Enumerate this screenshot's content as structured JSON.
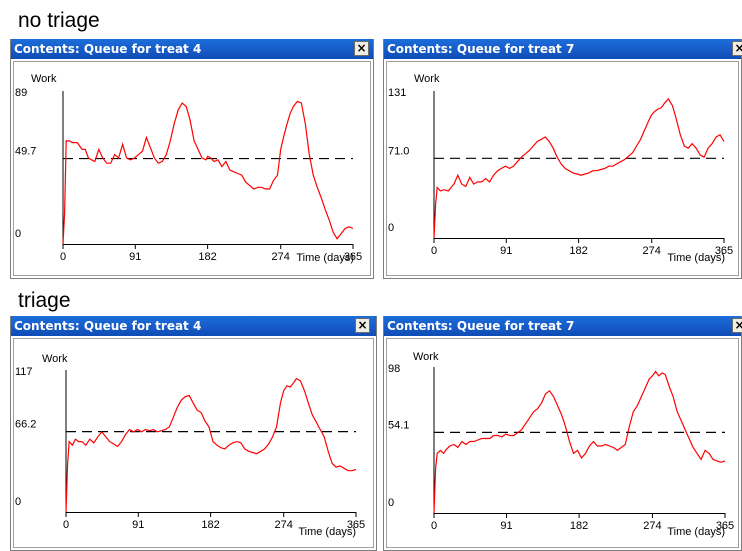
{
  "sections": [
    {
      "label": "no triage"
    },
    {
      "label": "triage"
    }
  ],
  "windows": [
    {
      "title": "Contents: Queue for treat 4",
      "close": "×"
    },
    {
      "title": "Contents: Queue for treat 7",
      "close": "×"
    },
    {
      "title": "Contents: Queue for treat 4",
      "close": "×"
    },
    {
      "title": "Contents: Queue for treat 7",
      "close": "×"
    }
  ],
  "chart_data": [
    {
      "type": "line",
      "title": "Contents: Queue for treat 4",
      "ylabel": "Work",
      "xlabel": "Time (days)",
      "xlim": [
        0,
        365
      ],
      "ylim": [
        0,
        89
      ],
      "x_ticks": [
        0,
        91,
        182,
        274,
        365
      ],
      "y_tick_labels": [
        "89",
        "49.7",
        "0"
      ],
      "mean_line": 49.7,
      "mean_label": "49.7",
      "line_color": "#ff0000",
      "mean_color": "#000000",
      "series": [
        {
          "x": [
            0,
            2,
            4,
            8,
            12,
            18,
            24,
            28,
            32,
            36,
            40,
            45,
            50,
            55,
            60,
            65,
            70,
            75,
            80,
            85,
            90,
            95,
            100,
            105,
            110,
            115,
            120,
            125,
            130,
            135,
            140,
            145,
            150,
            155,
            160,
            165,
            170,
            175,
            180,
            182,
            186,
            190,
            195,
            200,
            205,
            210,
            215,
            220,
            225,
            230,
            235,
            240,
            245,
            250,
            255,
            260,
            265,
            270,
            274,
            278,
            282,
            286,
            290,
            295,
            300,
            305,
            310,
            315,
            320,
            325,
            330,
            335,
            340,
            345,
            350,
            355,
            360,
            365
          ],
          "y": [
            0,
            18,
            60,
            60,
            59,
            59,
            55,
            55,
            50,
            49,
            48,
            55,
            50,
            47,
            47,
            52,
            50,
            58,
            50,
            49,
            50,
            52,
            54,
            62,
            56,
            50,
            47,
            48,
            52,
            60,
            70,
            78,
            82,
            80,
            72,
            60,
            55,
            50,
            49,
            51,
            50,
            48,
            49,
            45,
            48,
            43,
            42,
            41,
            40,
            36,
            34,
            32,
            33,
            33,
            32,
            32,
            37,
            40,
            55,
            63,
            70,
            76,
            80,
            83,
            82,
            70,
            52,
            40,
            33,
            27,
            20,
            14,
            7,
            3,
            6,
            9,
            10,
            9
          ]
        }
      ]
    },
    {
      "type": "line",
      "title": "Contents: Queue for treat 7",
      "ylabel": "Work",
      "xlabel": "Time (days)",
      "xlim": [
        0,
        365
      ],
      "ylim": [
        0,
        131
      ],
      "x_ticks": [
        0,
        91,
        182,
        274,
        365
      ],
      "y_tick_labels": [
        "131",
        "71.0",
        "0"
      ],
      "mean_line": 71.0,
      "mean_label": "71.0",
      "line_color": "#ff0000",
      "mean_color": "#000000",
      "series": [
        {
          "x": [
            0,
            2,
            4,
            8,
            12,
            18,
            25,
            30,
            35,
            40,
            45,
            50,
            55,
            60,
            65,
            70,
            75,
            80,
            85,
            90,
            95,
            100,
            105,
            110,
            115,
            120,
            125,
            130,
            135,
            140,
            145,
            150,
            155,
            160,
            165,
            170,
            175,
            180,
            185,
            190,
            195,
            200,
            205,
            210,
            215,
            220,
            225,
            230,
            235,
            240,
            245,
            250,
            255,
            260,
            265,
            270,
            274,
            278,
            282,
            286,
            290,
            295,
            300,
            305,
            310,
            315,
            320,
            325,
            330,
            335,
            340,
            345,
            350,
            355,
            360,
            365
          ],
          "y": [
            0,
            30,
            45,
            42,
            43,
            42,
            48,
            56,
            48,
            46,
            54,
            48,
            50,
            50,
            53,
            50,
            56,
            60,
            62,
            64,
            62,
            64,
            68,
            72,
            75,
            78,
            82,
            86,
            88,
            90,
            86,
            80,
            72,
            66,
            62,
            60,
            58,
            57,
            56,
            57,
            58,
            60,
            60,
            61,
            62,
            64,
            64,
            66,
            68,
            70,
            73,
            76,
            82,
            88,
            96,
            104,
            110,
            113,
            115,
            116,
            120,
            124,
            118,
            106,
            92,
            82,
            80,
            84,
            80,
            74,
            72,
            80,
            84,
            90,
            92,
            86
          ]
        }
      ]
    },
    {
      "type": "line",
      "title": "Contents: Queue for treat 4",
      "ylabel": "Work",
      "xlabel": "Time (days)",
      "xlim": [
        0,
        365
      ],
      "ylim": [
        0,
        117
      ],
      "x_ticks": [
        0,
        91,
        182,
        274,
        365
      ],
      "y_tick_labels": [
        "117",
        "66.2",
        "0"
      ],
      "mean_line": 66.2,
      "mean_label": "66.2",
      "line_color": "#ff0000",
      "mean_color": "#000000",
      "series": [
        {
          "x": [
            0,
            2,
            4,
            8,
            12,
            16,
            20,
            25,
            30,
            35,
            40,
            45,
            50,
            55,
            60,
            65,
            70,
            75,
            80,
            85,
            90,
            95,
            100,
            105,
            110,
            115,
            120,
            125,
            130,
            135,
            140,
            145,
            150,
            155,
            160,
            165,
            170,
            175,
            180,
            185,
            190,
            195,
            200,
            205,
            210,
            215,
            220,
            225,
            230,
            235,
            240,
            245,
            250,
            255,
            260,
            265,
            270,
            274,
            278,
            282,
            286,
            290,
            295,
            300,
            305,
            310,
            315,
            320,
            325,
            330,
            335,
            340,
            345,
            350,
            355,
            360,
            365
          ],
          "y": [
            0,
            40,
            58,
            55,
            60,
            58,
            58,
            55,
            60,
            57,
            62,
            66,
            62,
            58,
            56,
            54,
            58,
            64,
            68,
            66,
            68,
            66,
            68,
            67,
            68,
            66,
            67,
            68,
            70,
            78,
            86,
            92,
            95,
            96,
            90,
            84,
            82,
            75,
            70,
            58,
            55,
            53,
            52,
            55,
            57,
            58,
            57,
            52,
            50,
            49,
            48,
            50,
            52,
            56,
            62,
            70,
            90,
            100,
            104,
            103,
            106,
            110,
            108,
            100,
            90,
            80,
            74,
            68,
            62,
            50,
            40,
            37,
            38,
            36,
            34,
            34,
            35
          ]
        }
      ]
    },
    {
      "type": "line",
      "title": "Contents: Queue for treat 7",
      "ylabel": "Work",
      "xlabel": "Time (days)",
      "xlim": [
        0,
        365
      ],
      "ylim": [
        0,
        98
      ],
      "x_ticks": [
        0,
        91,
        182,
        274,
        365
      ],
      "y_tick_labels": [
        "98",
        "54.1",
        "0"
      ],
      "mean_line": 54.1,
      "mean_label": "54.1",
      "line_color": "#ff0000",
      "mean_color": "#000000",
      "series": [
        {
          "x": [
            0,
            2,
            4,
            8,
            12,
            16,
            20,
            25,
            30,
            35,
            40,
            45,
            50,
            55,
            60,
            65,
            70,
            75,
            80,
            85,
            90,
            95,
            100,
            105,
            110,
            115,
            120,
            125,
            130,
            135,
            140,
            145,
            150,
            155,
            160,
            165,
            170,
            175,
            180,
            185,
            190,
            195,
            200,
            205,
            210,
            215,
            220,
            225,
            230,
            235,
            240,
            245,
            250,
            255,
            260,
            265,
            270,
            274,
            278,
            282,
            286,
            290,
            295,
            300,
            305,
            310,
            315,
            320,
            325,
            330,
            335,
            340,
            345,
            350,
            355,
            360,
            365
          ],
          "y": [
            0,
            30,
            40,
            42,
            40,
            43,
            45,
            46,
            44,
            48,
            46,
            48,
            48,
            49,
            50,
            50,
            50,
            52,
            52,
            51,
            53,
            52,
            52,
            54,
            56,
            60,
            64,
            68,
            70,
            74,
            80,
            82,
            78,
            72,
            66,
            58,
            48,
            40,
            42,
            37,
            40,
            45,
            48,
            45,
            45,
            46,
            45,
            44,
            42,
            44,
            46,
            58,
            68,
            72,
            78,
            84,
            90,
            92,
            95,
            92,
            94,
            93,
            85,
            78,
            68,
            62,
            56,
            50,
            44,
            40,
            36,
            42,
            40,
            36,
            35,
            34,
            35
          ]
        }
      ]
    }
  ]
}
